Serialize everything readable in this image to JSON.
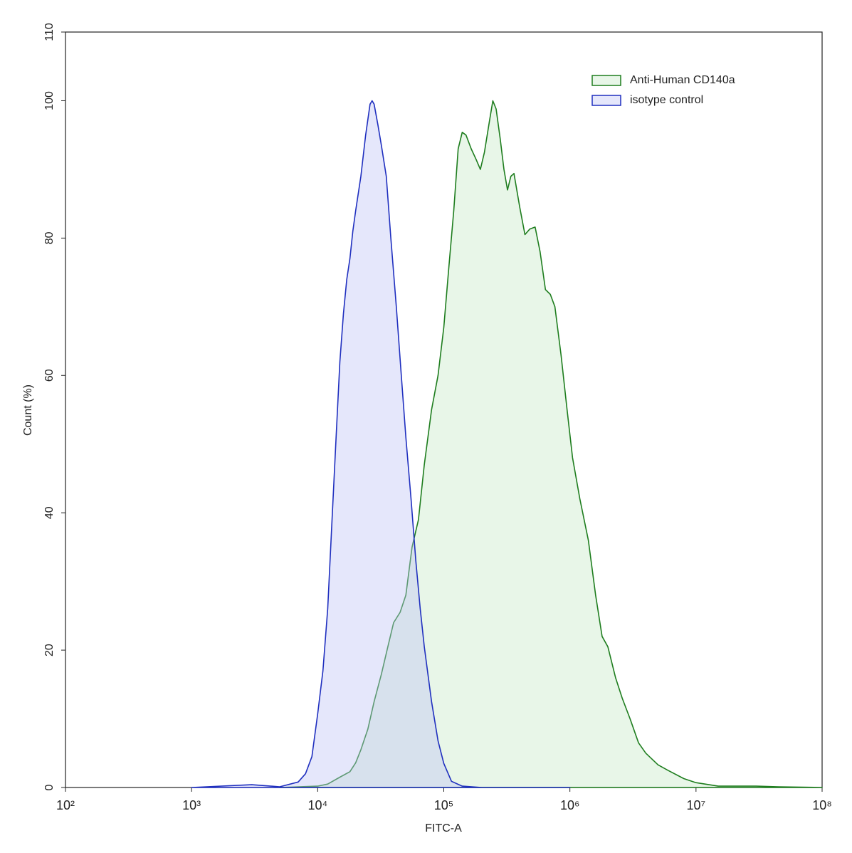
{
  "chart_data": {
    "type": "area",
    "xlabel": "FITC-A",
    "ylabel": "Count  (%)",
    "xscale": "log",
    "xlim": [
      100,
      100000000
    ],
    "ylim": [
      0,
      110
    ],
    "xticks": [
      {
        "value": 100,
        "label": "10²"
      },
      {
        "value": 1000,
        "label": "10³"
      },
      {
        "value": 10000,
        "label": "10⁴"
      },
      {
        "value": 100000,
        "label": "10⁵"
      },
      {
        "value": 1000000,
        "label": "10⁶"
      },
      {
        "value": 10000000,
        "label": "10⁷"
      },
      {
        "value": 100000000,
        "label": "10⁸"
      }
    ],
    "yticks": [
      0,
      20,
      40,
      60,
      80,
      100,
      110
    ],
    "grid": false,
    "legend": "upper right",
    "series": [
      {
        "name": "Anti-Human CD140a",
        "color": "#1e7d1e",
        "fill": "rgba(190,230,190,0.35)",
        "x": [
          5000,
          10000,
          12000,
          15000,
          18000,
          20000,
          22000,
          25000,
          28000,
          32000,
          36000,
          40000,
          45000,
          50000,
          56000,
          63000,
          70000,
          80000,
          90000,
          100000,
          110000,
          120000,
          130000,
          140000,
          150000,
          165000,
          180000,
          195000,
          210000,
          230000,
          245000,
          260000,
          280000,
          300000,
          320000,
          340000,
          360000,
          400000,
          440000,
          480000,
          530000,
          580000,
          640000,
          700000,
          760000,
          850000,
          950000,
          1050000,
          1200000,
          1400000,
          1600000,
          1800000,
          2000000,
          2300000,
          2600000,
          3000000,
          3500000,
          4000000,
          5000000,
          6000000,
          8000000,
          10000000,
          15000000,
          30000000,
          45000000,
          100000000
        ],
        "values": [
          0,
          0.2,
          0.5,
          1.5,
          2.3,
          3.6,
          5.5,
          8.5,
          12.5,
          16.5,
          20.5,
          24,
          25.5,
          28,
          35,
          39,
          47,
          55,
          60,
          67,
          76,
          84,
          93,
          95.4,
          95,
          93,
          91.5,
          90,
          92.5,
          97,
          100,
          98.8,
          94.5,
          90,
          87,
          89,
          89.4,
          84.5,
          80.5,
          81.3,
          81.6,
          78,
          72.5,
          71.8,
          70,
          63,
          55,
          48,
          42,
          36,
          28,
          22,
          20.5,
          16,
          13,
          10,
          6.5,
          5,
          3.3,
          2.5,
          1.3,
          0.7,
          0.2,
          0.2,
          0.1,
          0
        ]
      },
      {
        "name": "isotype control",
        "color": "#1f2fbf",
        "fill": "rgba(190,195,245,0.4)",
        "x": [
          1000,
          3000,
          5000,
          7000,
          8000,
          9000,
          10000,
          11000,
          12000,
          13000,
          14000,
          15000,
          16000,
          17000,
          18000,
          19000,
          20000,
          22000,
          24000,
          26000,
          27000,
          28000,
          30000,
          32000,
          35000,
          38000,
          42000,
          46000,
          50000,
          55000,
          60000,
          65000,
          70000,
          80000,
          90000,
          100000,
          115000,
          140000,
          200000,
          1000000
        ],
        "values": [
          0,
          0.4,
          0.1,
          0.8,
          2,
          4.5,
          10.7,
          17,
          26,
          39,
          51,
          62,
          69,
          74,
          77,
          81,
          84,
          89,
          95,
          99.5,
          100,
          99.5,
          96.5,
          93.5,
          89,
          80,
          70,
          60,
          51,
          42,
          33,
          26,
          20.5,
          12.5,
          6.8,
          3.5,
          0.9,
          0.2,
          0,
          0
        ]
      }
    ]
  }
}
